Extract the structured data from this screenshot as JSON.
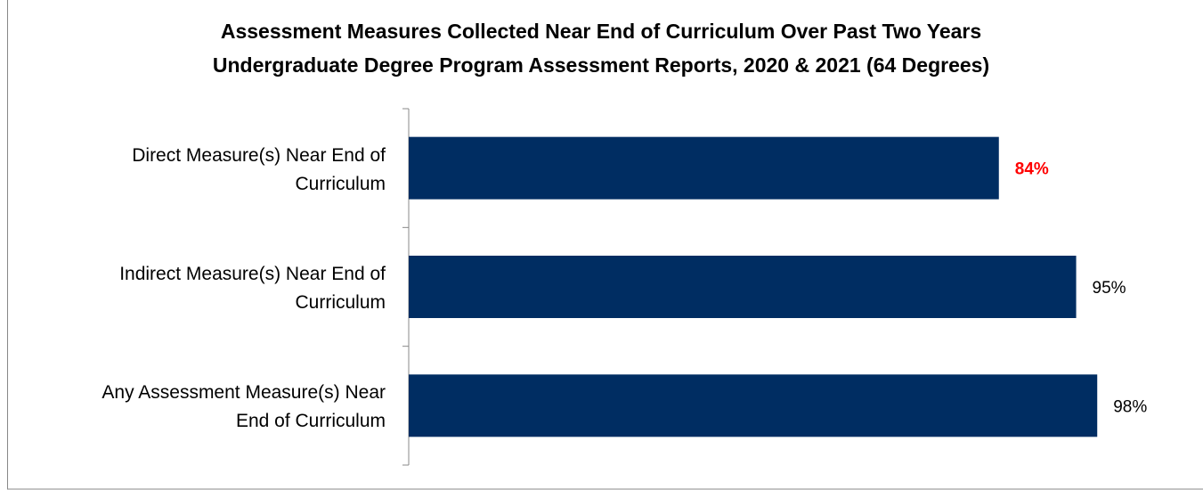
{
  "chart_data": {
    "type": "bar",
    "orientation": "horizontal",
    "title": "Assessment Measures Collected Near End of Curriculum Over Past Two Years",
    "subtitle": "Undergraduate Degree Program Assessment Reports, 2020 & 2021 (64 Degrees)",
    "categories": [
      "Direct Measure(s) Near End of Curriculum",
      "Indirect Measure(s) Near End of Curriculum",
      "Any Assessment Measure(s) Near End of Curriculum"
    ],
    "values": [
      84,
      95,
      98
    ],
    "value_labels": [
      "84%",
      "95%",
      "98%"
    ],
    "value_label_colors": [
      "#ff0000",
      "#000000",
      "#000000"
    ],
    "value_label_weights": [
      "bold",
      "normal",
      "normal"
    ],
    "color": "#002d62",
    "xlim": [
      0,
      100
    ]
  }
}
